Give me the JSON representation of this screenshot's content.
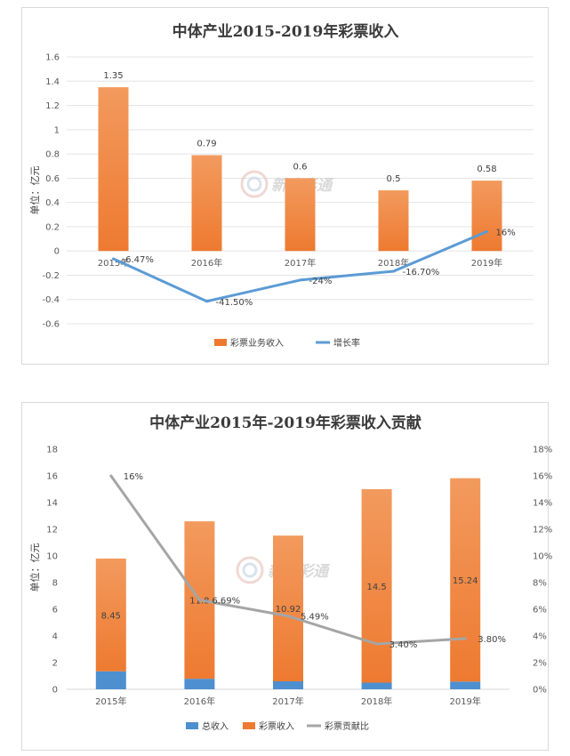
{
  "chart_data": [
    {
      "type": "bar",
      "title": "中体产业2015-2019年彩票收入",
      "ylabel": "单位：亿元",
      "categories": [
        "2015年",
        "2016年",
        "2017年",
        "2018年",
        "2019年"
      ],
      "ylim": [
        -0.6,
        1.6
      ],
      "yticks": [
        "-0.6",
        "-0.4",
        "-0.2",
        "0",
        "0.2",
        "0.4",
        "0.6",
        "0.8",
        "1",
        "1.2",
        "1.4",
        "1.6"
      ],
      "series": [
        {
          "name": "彩票业务收入",
          "kind": "bar",
          "values": [
            1.35,
            0.79,
            0.6,
            0.5,
            0.58
          ],
          "labels": [
            "1.35",
            "0.79",
            "0.6",
            "0.5",
            "0.58"
          ]
        },
        {
          "name": "增长率",
          "kind": "line",
          "values": [
            -0.0647,
            -0.415,
            -0.24,
            -0.167,
            0.16
          ],
          "labels": [
            "-6.47%",
            "-41.50%",
            "-24%",
            "-16.70%",
            "16%"
          ]
        }
      ],
      "colors": {
        "bar": "#ee7a30",
        "bar_top": "#f29a5e",
        "line": "#5b9bd5"
      },
      "grid": true,
      "legend_position": "bottom"
    },
    {
      "type": "bar",
      "title": "中体产业2015年-2019年彩票收入贡献",
      "ylabel": "单位：亿元",
      "categories": [
        "2015年",
        "2016年",
        "2017年",
        "2018年",
        "2019年"
      ],
      "ylim": [
        0,
        18
      ],
      "yticks": [
        "0",
        "2",
        "4",
        "6",
        "8",
        "10",
        "12",
        "14",
        "16",
        "18"
      ],
      "y2lim": [
        0,
        0.18
      ],
      "y2ticks": [
        "0%",
        "2%",
        "4%",
        "6%",
        "8%",
        "10%",
        "12%",
        "14%",
        "16%",
        "18%"
      ],
      "series": [
        {
          "name": "总收入",
          "kind": "stacked-bar",
          "values": [
            1.35,
            0.79,
            0.6,
            0.5,
            0.58
          ]
        },
        {
          "name": "彩票收入",
          "kind": "stacked-bar",
          "values": [
            8.45,
            11.8,
            10.92,
            14.5,
            15.24
          ],
          "labels": [
            "8.45",
            "11.8",
            "10.92",
            "14.5",
            "15.24"
          ]
        },
        {
          "name": "彩票贡献比",
          "kind": "line",
          "axis": "right",
          "values": [
            0.16,
            0.0669,
            0.0549,
            0.034,
            0.038
          ],
          "labels": [
            "16%",
            "6.69%",
            "5.49%",
            "3.40%",
            "3.80%"
          ]
        }
      ],
      "colors": {
        "bar_bottom": "#4e8fd0",
        "bar": "#ee7a30",
        "bar_top": "#f29a5e",
        "line": "#a5a5a5"
      },
      "grid": false,
      "legend_position": "bottom"
    }
  ],
  "watermark": "新浪彩通"
}
